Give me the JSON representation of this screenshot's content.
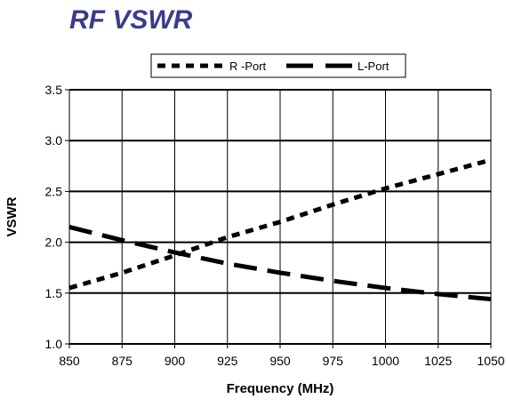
{
  "chart_data": {
    "type": "line",
    "title": "RF VSWR",
    "xlabel": "Frequency (MHz)",
    "ylabel": "VSWR",
    "xlim": [
      850,
      1050
    ],
    "ylim": [
      1.0,
      3.5
    ],
    "x_ticks": [
      "850",
      "875",
      "900",
      "925",
      "950",
      "975",
      "1000",
      "1025",
      "1050"
    ],
    "y_ticks": [
      "3.5",
      "3.0",
      "2.5",
      "2.0",
      "1.5",
      "1.0"
    ],
    "grid": true,
    "legend_position": "top-center",
    "series": [
      {
        "name": "R -Port",
        "line_style": "short-dash",
        "x": [
          850,
          875,
          900,
          925,
          950,
          975,
          1000,
          1025,
          1050
        ],
        "y": [
          1.55,
          1.7,
          1.87,
          2.05,
          2.2,
          2.37,
          2.53,
          2.67,
          2.81
        ]
      },
      {
        "name": "L-Port",
        "line_style": "long-dash",
        "x": [
          850,
          875,
          900,
          925,
          950,
          975,
          1000,
          1025,
          1050
        ],
        "y": [
          2.15,
          2.02,
          1.9,
          1.79,
          1.7,
          1.62,
          1.55,
          1.49,
          1.44
        ]
      }
    ]
  }
}
